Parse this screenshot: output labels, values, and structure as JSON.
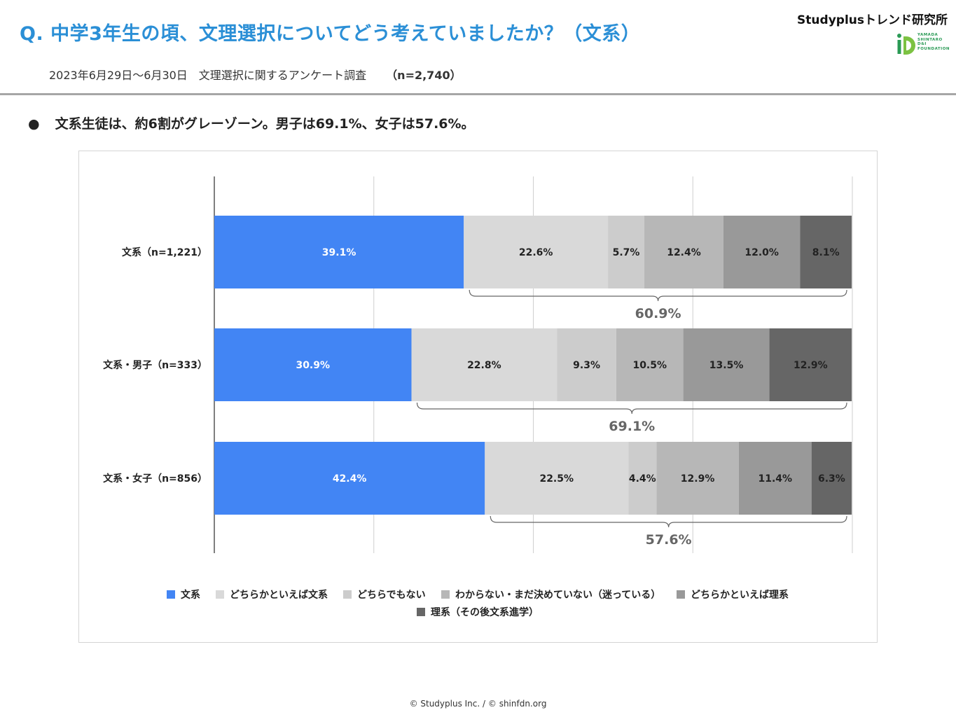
{
  "header": {
    "title": "Q. 中学3年生の頃、文理選択についてどう考えていましたか？（文系）",
    "subtitle": "2023年6月29日〜6月30日　文理選択に関するアンケート調査",
    "sample_size": "（n=2,740）",
    "brand": "Studyplusトレンド研究所",
    "logo_text": [
      "YAMADA",
      "SHINTARO",
      "D&I",
      "FOUNDATION"
    ]
  },
  "summary": {
    "bullet_mark": "●",
    "text": "文系生徒は、約6割がグレーゾーン。男子は69.1%、女子は57.6%。"
  },
  "colors": {
    "title": "#2b8fd6",
    "series": [
      "#4285f4",
      "#d9d9d9",
      "#cccccc",
      "#b7b7b7",
      "#999999",
      "#666666"
    ]
  },
  "chart_data": {
    "type": "bar",
    "orientation": "horizontal",
    "stacked": true,
    "unit": "%",
    "xlim": [
      0,
      100
    ],
    "grid": true,
    "legend_position": "bottom",
    "categories": [
      "文系（n=1,221）",
      "文系・男子（n=333）",
      "文系・女子（n=856）"
    ],
    "series": [
      {
        "name": "文系",
        "values": [
          39.1,
          30.9,
          42.4
        ]
      },
      {
        "name": "どちらかといえば文系",
        "values": [
          22.6,
          22.8,
          22.5
        ]
      },
      {
        "name": "どちらでもない",
        "values": [
          5.7,
          9.3,
          4.4
        ]
      },
      {
        "name": "わからない・まだ決めていない（迷っている）",
        "values": [
          12.4,
          10.5,
          12.9
        ]
      },
      {
        "name": "どちらかといえば理系",
        "values": [
          12.0,
          13.5,
          11.4
        ]
      },
      {
        "name": "理系（その後文系進学）",
        "values": [
          8.1,
          12.9,
          6.3
        ]
      }
    ],
    "brackets": [
      {
        "category": "文系（n=1,221）",
        "label": "60.9%"
      },
      {
        "category": "文系・男子（n=333）",
        "label": "69.1%"
      },
      {
        "category": "文系・女子（n=856）",
        "label": "57.6%"
      }
    ]
  },
  "footer": "© Studyplus Inc.  /  © shinfdn.org"
}
